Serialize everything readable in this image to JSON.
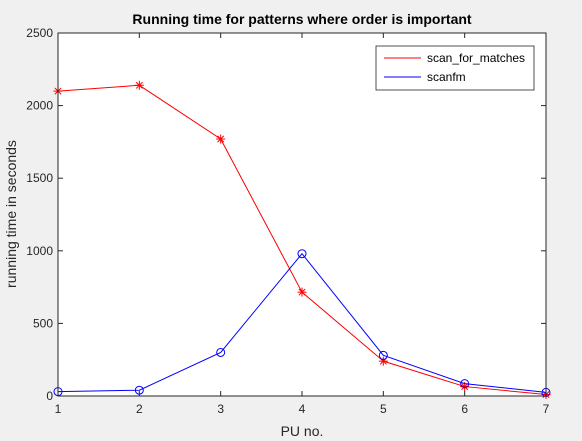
{
  "chart_data": {
    "type": "line",
    "title": "Running time for patterns where order is important",
    "xlabel": "PU no.",
    "ylabel": "running time in seconds",
    "x": [
      1,
      2,
      3,
      4,
      5,
      6,
      7
    ],
    "xlim": [
      1,
      7
    ],
    "ylim": [
      0,
      2500
    ],
    "xticks": [
      "1",
      "2",
      "3",
      "4",
      "5",
      "6",
      "7"
    ],
    "yticks": [
      "0",
      "500",
      "1000",
      "1500",
      "2000",
      "2500"
    ],
    "grid": false,
    "legend_position": "top-right",
    "series": [
      {
        "name": "scan_for_matches",
        "color": "#ff0000",
        "marker": "asterisk",
        "values": [
          2100,
          2140,
          1770,
          715,
          240,
          65,
          10
        ]
      },
      {
        "name": "scanfm",
        "color": "#0000ff",
        "marker": "circle",
        "values": [
          30,
          40,
          300,
          980,
          280,
          85,
          25
        ]
      }
    ]
  }
}
